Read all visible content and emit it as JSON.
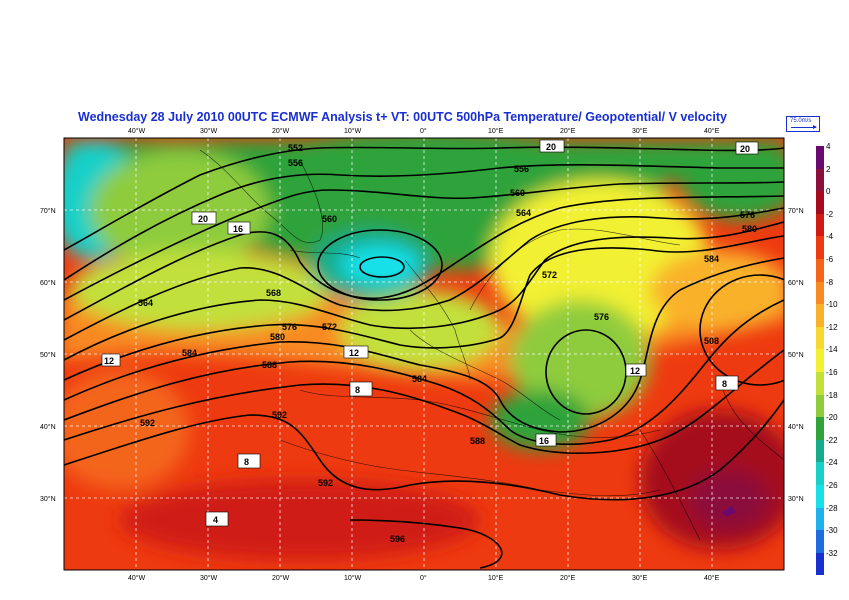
{
  "title": "Wednesday 28 July 2010 00UTC ECMWF  Analysis t+  VT:     00UTC 500hPa Temperature/  Geopotential/  V velocity",
  "wind_reference": "75.0m/s",
  "lon_ticks": [
    "40°W",
    "30°W",
    "20°W",
    "10°W",
    "0°",
    "10°E",
    "20°E",
    "30°E",
    "40°E"
  ],
  "lat_ticks": [
    "70°N",
    "60°N",
    "50°N",
    "40°N",
    "30°N"
  ],
  "legend": {
    "values": [
      "4",
      "2",
      "0",
      "-2",
      "-4",
      "-6",
      "-8",
      "-10",
      "-12",
      "-14",
      "-16",
      "-18",
      "-20",
      "-22",
      "-24",
      "-26",
      "-28",
      "-30",
      "-32"
    ],
    "colors": [
      "#6a0a6e",
      "#8b0f3a",
      "#a50b1c",
      "#d01a12",
      "#ee3a10",
      "#f4651a",
      "#f88a22",
      "#f9b12a",
      "#f7d830",
      "#f2f030",
      "#c2e03a",
      "#8ecc3c",
      "#2fa33a",
      "#16ab8a",
      "#18d0c8",
      "#18e0e8",
      "#20b0ec",
      "#1e6ce0",
      "#1a2fd0"
    ]
  },
  "geopotential_labels": [
    "552",
    "556",
    "560",
    "564",
    "568",
    "572",
    "576",
    "580",
    "584",
    "588",
    "592",
    "596",
    "508"
  ],
  "temperature_labels": [
    "20",
    "16",
    "12",
    "8",
    "4"
  ]
}
